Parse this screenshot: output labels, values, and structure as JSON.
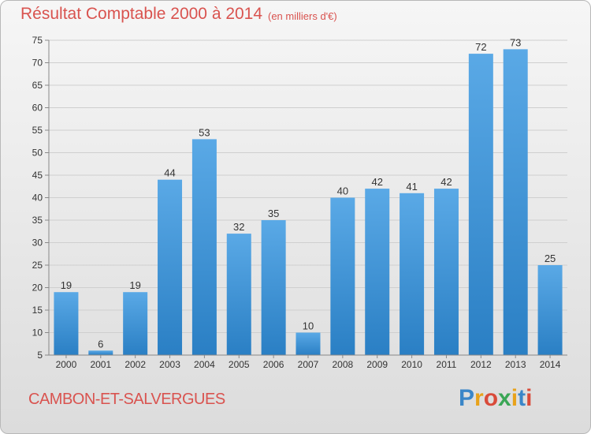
{
  "header": {
    "title": "Résultat Comptable 2000 à 2014",
    "subtitle": "(en milliers d'€)"
  },
  "footer": {
    "commune": "CAMBON-ET-SALVERGUES",
    "logo_letters": [
      "P",
      "r",
      "o",
      "x",
      "i",
      "t",
      "i"
    ],
    "logo_colors": [
      "#3a86c8",
      "#e8a21a",
      "#d94b3a",
      "#3aa655",
      "#e8a21a",
      "#3a86c8",
      "#d94b3a"
    ]
  },
  "colors": {
    "bar_light": "#5aa9e6",
    "bar_dark": "#2a7fc4",
    "grid": "#cfcfcf",
    "title": "#d9534f"
  },
  "chart_data": {
    "type": "bar",
    "title": "Résultat Comptable 2000 à 2014",
    "subtitle": "(en milliers d'€)",
    "categories": [
      "2000",
      "2001",
      "2002",
      "2003",
      "2004",
      "2005",
      "2006",
      "2007",
      "2008",
      "2009",
      "2010",
      "2011",
      "2012",
      "2013",
      "2014"
    ],
    "values": [
      19,
      6,
      19,
      44,
      53,
      32,
      35,
      10,
      40,
      42,
      41,
      42,
      72,
      73,
      25
    ],
    "ylim": [
      5,
      75
    ],
    "yticks": [
      5,
      10,
      15,
      20,
      25,
      30,
      35,
      40,
      45,
      50,
      55,
      60,
      65,
      70,
      75
    ],
    "grid": true,
    "data_labels": true
  }
}
